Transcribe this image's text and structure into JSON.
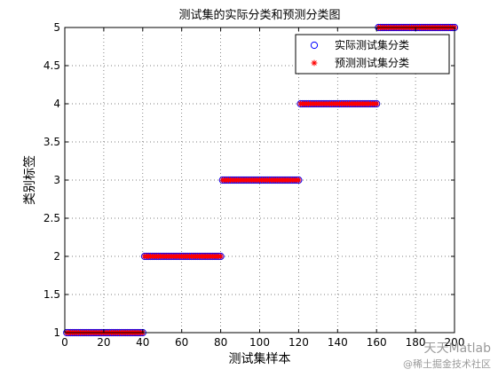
{
  "chart_data": {
    "type": "scatter",
    "title": "测试集的实际分类和预测分类图",
    "xlabel": "测试集样本",
    "ylabel": "类别标签",
    "xlim": [
      0,
      200
    ],
    "ylim": [
      1,
      5
    ],
    "xticks": [
      0,
      20,
      40,
      60,
      80,
      100,
      120,
      140,
      160,
      180,
      200
    ],
    "yticks": [
      1,
      1.5,
      2,
      2.5,
      3,
      3.5,
      4,
      4.5,
      5
    ],
    "grid": true,
    "legend_position": "top-right",
    "colors": {
      "actual": "#0000ff",
      "predicted": "#ff0000"
    },
    "series": [
      {
        "name": "实际测试集分类",
        "marker": "circle",
        "segments": [
          {
            "label": 1,
            "from": 1,
            "to": 40
          },
          {
            "label": 2,
            "from": 41,
            "to": 80
          },
          {
            "label": 3,
            "from": 81,
            "to": 120
          },
          {
            "label": 4,
            "from": 121,
            "to": 160
          },
          {
            "label": 5,
            "from": 161,
            "to": 200
          }
        ]
      },
      {
        "name": "预测测试集分类",
        "marker": "star",
        "segments": [
          {
            "label": 1,
            "from": 1,
            "to": 40
          },
          {
            "label": 2,
            "from": 41,
            "to": 80
          },
          {
            "label": 3,
            "from": 81,
            "to": 120
          },
          {
            "label": 4,
            "from": 121,
            "to": 160
          },
          {
            "label": 5,
            "from": 161,
            "to": 200
          }
        ]
      }
    ]
  },
  "watermark": {
    "line1": "天天Matlab",
    "line2": "@稀土掘金技术社区"
  }
}
